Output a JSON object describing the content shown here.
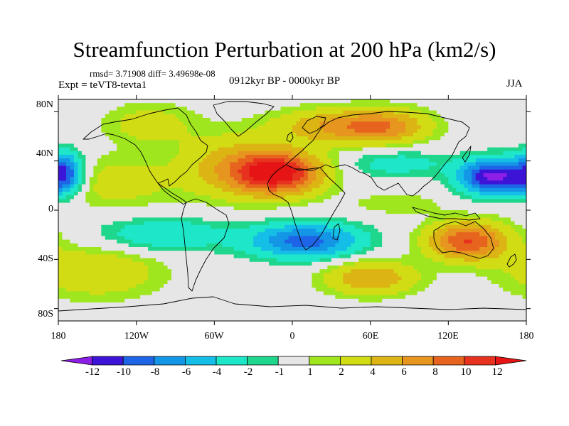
{
  "title": "Streamfunction Perturbation at 200 hPa (km2/s)",
  "stats": {
    "rmsd_label": "rmsd=",
    "rmsd_value": "3.71908",
    "diff_label": "diff=",
    "diff_value": "3.49698e-08"
  },
  "experiment": "Expt = teVT8-tevta1",
  "period": "0912kyr BP - 0000kyr BP",
  "season": "JJA",
  "map": {
    "projection": "cylindrical-equidistant",
    "lon_range": [
      -180,
      180
    ],
    "lat_range": [
      -90,
      90
    ],
    "lat_ticks": [
      {
        "value": 80,
        "label": "80N"
      },
      {
        "value": 40,
        "label": "40N"
      },
      {
        "value": 0,
        "label": "0"
      },
      {
        "value": -40,
        "label": "40S"
      },
      {
        "value": -80,
        "label": "80S"
      }
    ],
    "lon_ticks": [
      {
        "value": -180,
        "label": "180"
      },
      {
        "value": -120,
        "label": "120W"
      },
      {
        "value": -60,
        "label": "60W"
      },
      {
        "value": 0,
        "label": "0"
      },
      {
        "value": 60,
        "label": "60E"
      },
      {
        "value": 120,
        "label": "120E"
      },
      {
        "value": 180,
        "label": "180"
      }
    ],
    "anomalies": [
      {
        "name": "north-africa-atlantic-high",
        "lon": -10,
        "lat": 30,
        "peak": 12,
        "sx": 24,
        "sy": 12
      },
      {
        "name": "north-atlantic-ridge",
        "lon": -45,
        "lat": 35,
        "peak": 5,
        "sx": 30,
        "sy": 18
      },
      {
        "name": "eurasia-high-west",
        "lon": 25,
        "lat": 68,
        "peak": 5,
        "sx": 30,
        "sy": 10
      },
      {
        "name": "eurasia-high-east",
        "lon": 70,
        "lat": 68,
        "peak": 7,
        "sx": 25,
        "sy": 10
      },
      {
        "name": "central-asia-low",
        "lon": 80,
        "lat": 38,
        "peak": -3,
        "sx": 28,
        "sy": 8
      },
      {
        "name": "west-pacific-low",
        "lon": 155,
        "lat": 27,
        "peak": -13,
        "sx": 18,
        "sy": 10
      },
      {
        "name": "central-pacific-low",
        "lon": -175,
        "lat": 30,
        "peak": -9,
        "sx": 10,
        "sy": 12
      },
      {
        "name": "north-pacific-ridge",
        "lon": -135,
        "lat": 22,
        "peak": 3,
        "sx": 30,
        "sy": 15
      },
      {
        "name": "australia-high",
        "lon": 135,
        "lat": -25,
        "peak": 10,
        "sx": 22,
        "sy": 11
      },
      {
        "name": "south-atlantic-low",
        "lon": 10,
        "lat": -25,
        "peak": -9,
        "sx": 30,
        "sy": 10
      },
      {
        "name": "south-pacific-low",
        "lon": -100,
        "lat": -20,
        "peak": -4,
        "sx": 35,
        "sy": 10
      },
      {
        "name": "southern-ocean-high-east",
        "lon": 60,
        "lat": -55,
        "peak": 6,
        "sx": 25,
        "sy": 10
      },
      {
        "name": "southern-ocean-high-west",
        "lon": -150,
        "lat": -50,
        "peak": 4,
        "sx": 35,
        "sy": 15
      },
      {
        "name": "high-arctic-ridge",
        "lon": -110,
        "lat": 70,
        "peak": 3,
        "sx": 25,
        "sy": 12
      },
      {
        "name": "tropical-indian-ridge",
        "lon": 80,
        "lat": 5,
        "peak": 2,
        "sx": 25,
        "sy": 6
      }
    ]
  },
  "colorbar": {
    "colors": [
      "#8c1ee6",
      "#3c14d7",
      "#1e64e6",
      "#1496e6",
      "#14bee6",
      "#1ee6c8",
      "#1ed78c",
      "#e6e6e6",
      "#a0e61e",
      "#d2dc14",
      "#dcb414",
      "#e6961e",
      "#e6641e",
      "#e6321e",
      "#e61414"
    ],
    "bounds": [
      -13,
      -12,
      -10,
      -8,
      -6,
      -4,
      -2,
      -1,
      1,
      2,
      4,
      6,
      8,
      10,
      12,
      13
    ],
    "labels": [
      "-12",
      "-10",
      "-8",
      "-6",
      "-4",
      "-2",
      "-1",
      "1",
      "2",
      "4",
      "6",
      "8",
      "10",
      "12"
    ]
  }
}
